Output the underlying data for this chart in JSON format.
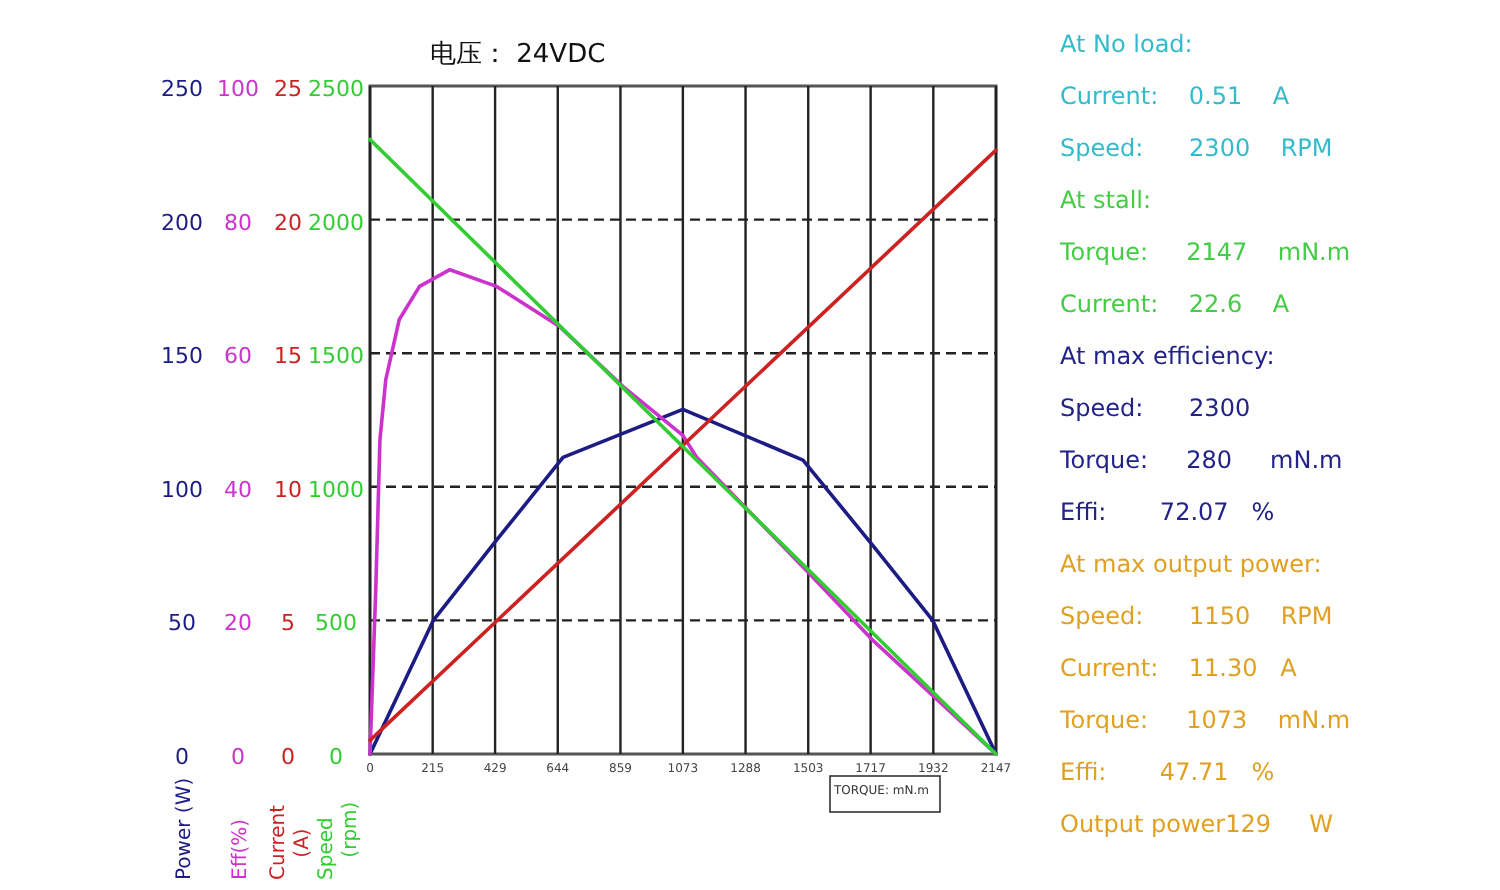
{
  "chart_data": [
    {
      "type": "line",
      "title": "电压： 24VDC",
      "xlabel": "TORQUE: mN.m",
      "ylabel": "Power (W)",
      "xlim": [
        0,
        2147
      ],
      "xticks": [
        0,
        215,
        429,
        644,
        859,
        1073,
        1288,
        1503,
        1717,
        1932,
        2147
      ],
      "ylim": [
        0,
        250
      ],
      "yticks": [
        0,
        50,
        100,
        150,
        200,
        250
      ],
      "grid": true,
      "marker": "none",
      "series": [
        {
          "color": "#1c1c84",
          "x": [
            0,
            217,
            434,
            662,
            1073,
            1485,
            1725,
            1930,
            2147
          ],
          "values": [
            0,
            50,
            80,
            111,
            129,
            110,
            78,
            50,
            0
          ]
        }
      ],
      "annotations": [
        "At No load:",
        "Current:    0.51    A",
        "Speed:      2300    RPM",
        "At stall:",
        "Torque:     2147    mN.m",
        "Current:    22.6    A",
        "At max efficiency:",
        "Speed:      2300",
        "Torque:     280     mN.m",
        "Effi:       72.07   %",
        "At max output power:",
        "Speed:      1150    RPM",
        "Current:    11.30   A",
        "Torque:     1073    mN.m",
        "Effi:       47.71   %",
        "Output power129     W"
      ]
    },
    {
      "type": "line",
      "ylabel": "Eff(%)",
      "tick_labels": "y",
      "xlim": [
        0,
        2147
      ],
      "ylim": [
        0,
        100
      ],
      "yticks": [
        0,
        20,
        40,
        60,
        80,
        100
      ],
      "marker": "none",
      "series": [
        {
          "color": "#cc33cc",
          "x": [
            0,
            20,
            34,
            54,
            100,
            170,
            274,
            434,
            650,
            868,
            1073,
            1119,
            1496,
            1725,
            2147
          ],
          "values": [
            0,
            25,
            47,
            56,
            65,
            70,
            72.5,
            70,
            64,
            55,
            47.7,
            44.5,
            27.5,
            17,
            0
          ]
        }
      ]
    },
    {
      "type": "line",
      "ylabel": "Current (A)",
      "tick_labels": "y",
      "xlim": [
        0,
        2147
      ],
      "ylim": [
        0,
        25
      ],
      "yticks": [
        0,
        5,
        10,
        15,
        20,
        25
      ],
      "marker": "none",
      "series": [
        {
          "color": "#cc2222",
          "x": [
            0,
            2147
          ],
          "values": [
            0.51,
            22.6
          ]
        }
      ]
    },
    {
      "type": "line",
      "ylabel": "Speed (rpm)",
      "tick_labels": "y",
      "xlim": [
        0,
        2147
      ],
      "ylim": [
        0,
        2500
      ],
      "yticks": [
        0,
        500,
        1000,
        1500,
        2000,
        2500
      ],
      "marker": "none",
      "series": [
        {
          "color": "#33cc33",
          "x": [
            0,
            2147
          ],
          "values": [
            2300,
            0
          ]
        }
      ]
    }
  ]
}
